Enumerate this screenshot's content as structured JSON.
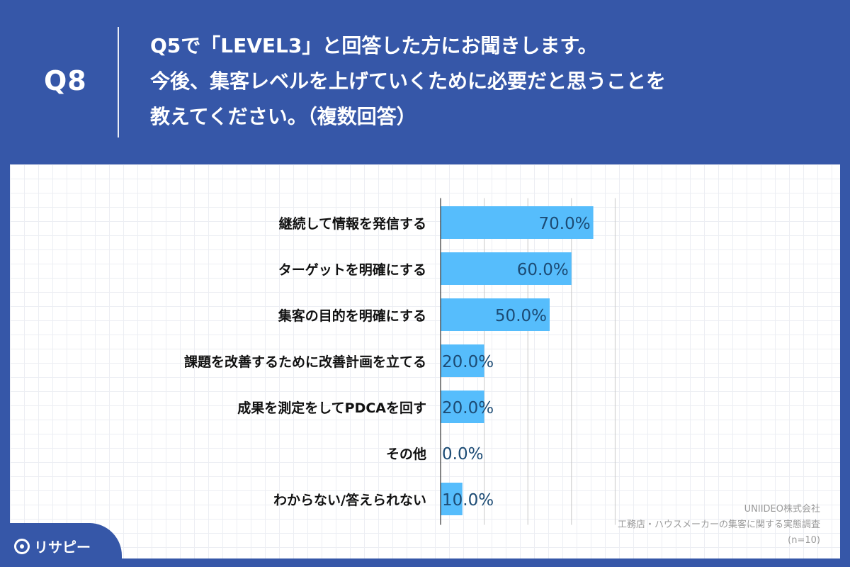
{
  "header": {
    "qnum": "Q8",
    "question_lines": [
      "Q5で「LEVEL3」と回答した方にお聞きします。",
      "今後、集客レベルを上げていくために必要だと思うことを",
      "教えてください。（複数回答）"
    ]
  },
  "source": {
    "company": "UNIIDEO株式会社",
    "survey": "工務店・ハウスメーカーの集客に関する実態調査",
    "sample": "(n=10)"
  },
  "logo": {
    "text": "リサピー",
    "icon": "magnifier-pin-icon"
  },
  "colors": {
    "background": "#3657a8",
    "bar": "#56bdfc",
    "value_label": "#1c4b74",
    "category_label": "#111111"
  },
  "chart_data": {
    "type": "bar",
    "orientation": "horizontal",
    "categories": [
      "継続して情報を発信する",
      "ターゲットを明確にする",
      "集客の目的を明確にする",
      "課題を改善するために改善計画を立てる",
      "成果を測定をしてPDCAを回す",
      "その他",
      "わからない/答えられない"
    ],
    "values": [
      70.0,
      60.0,
      50.0,
      20.0,
      20.0,
      0.0,
      10.0
    ],
    "value_labels": [
      "70.0%",
      "60.0%",
      "50.0%",
      "20.0%",
      "20.0%",
      "0.0%",
      "10.0%"
    ],
    "xlim": [
      0,
      100
    ],
    "grid": true
  }
}
